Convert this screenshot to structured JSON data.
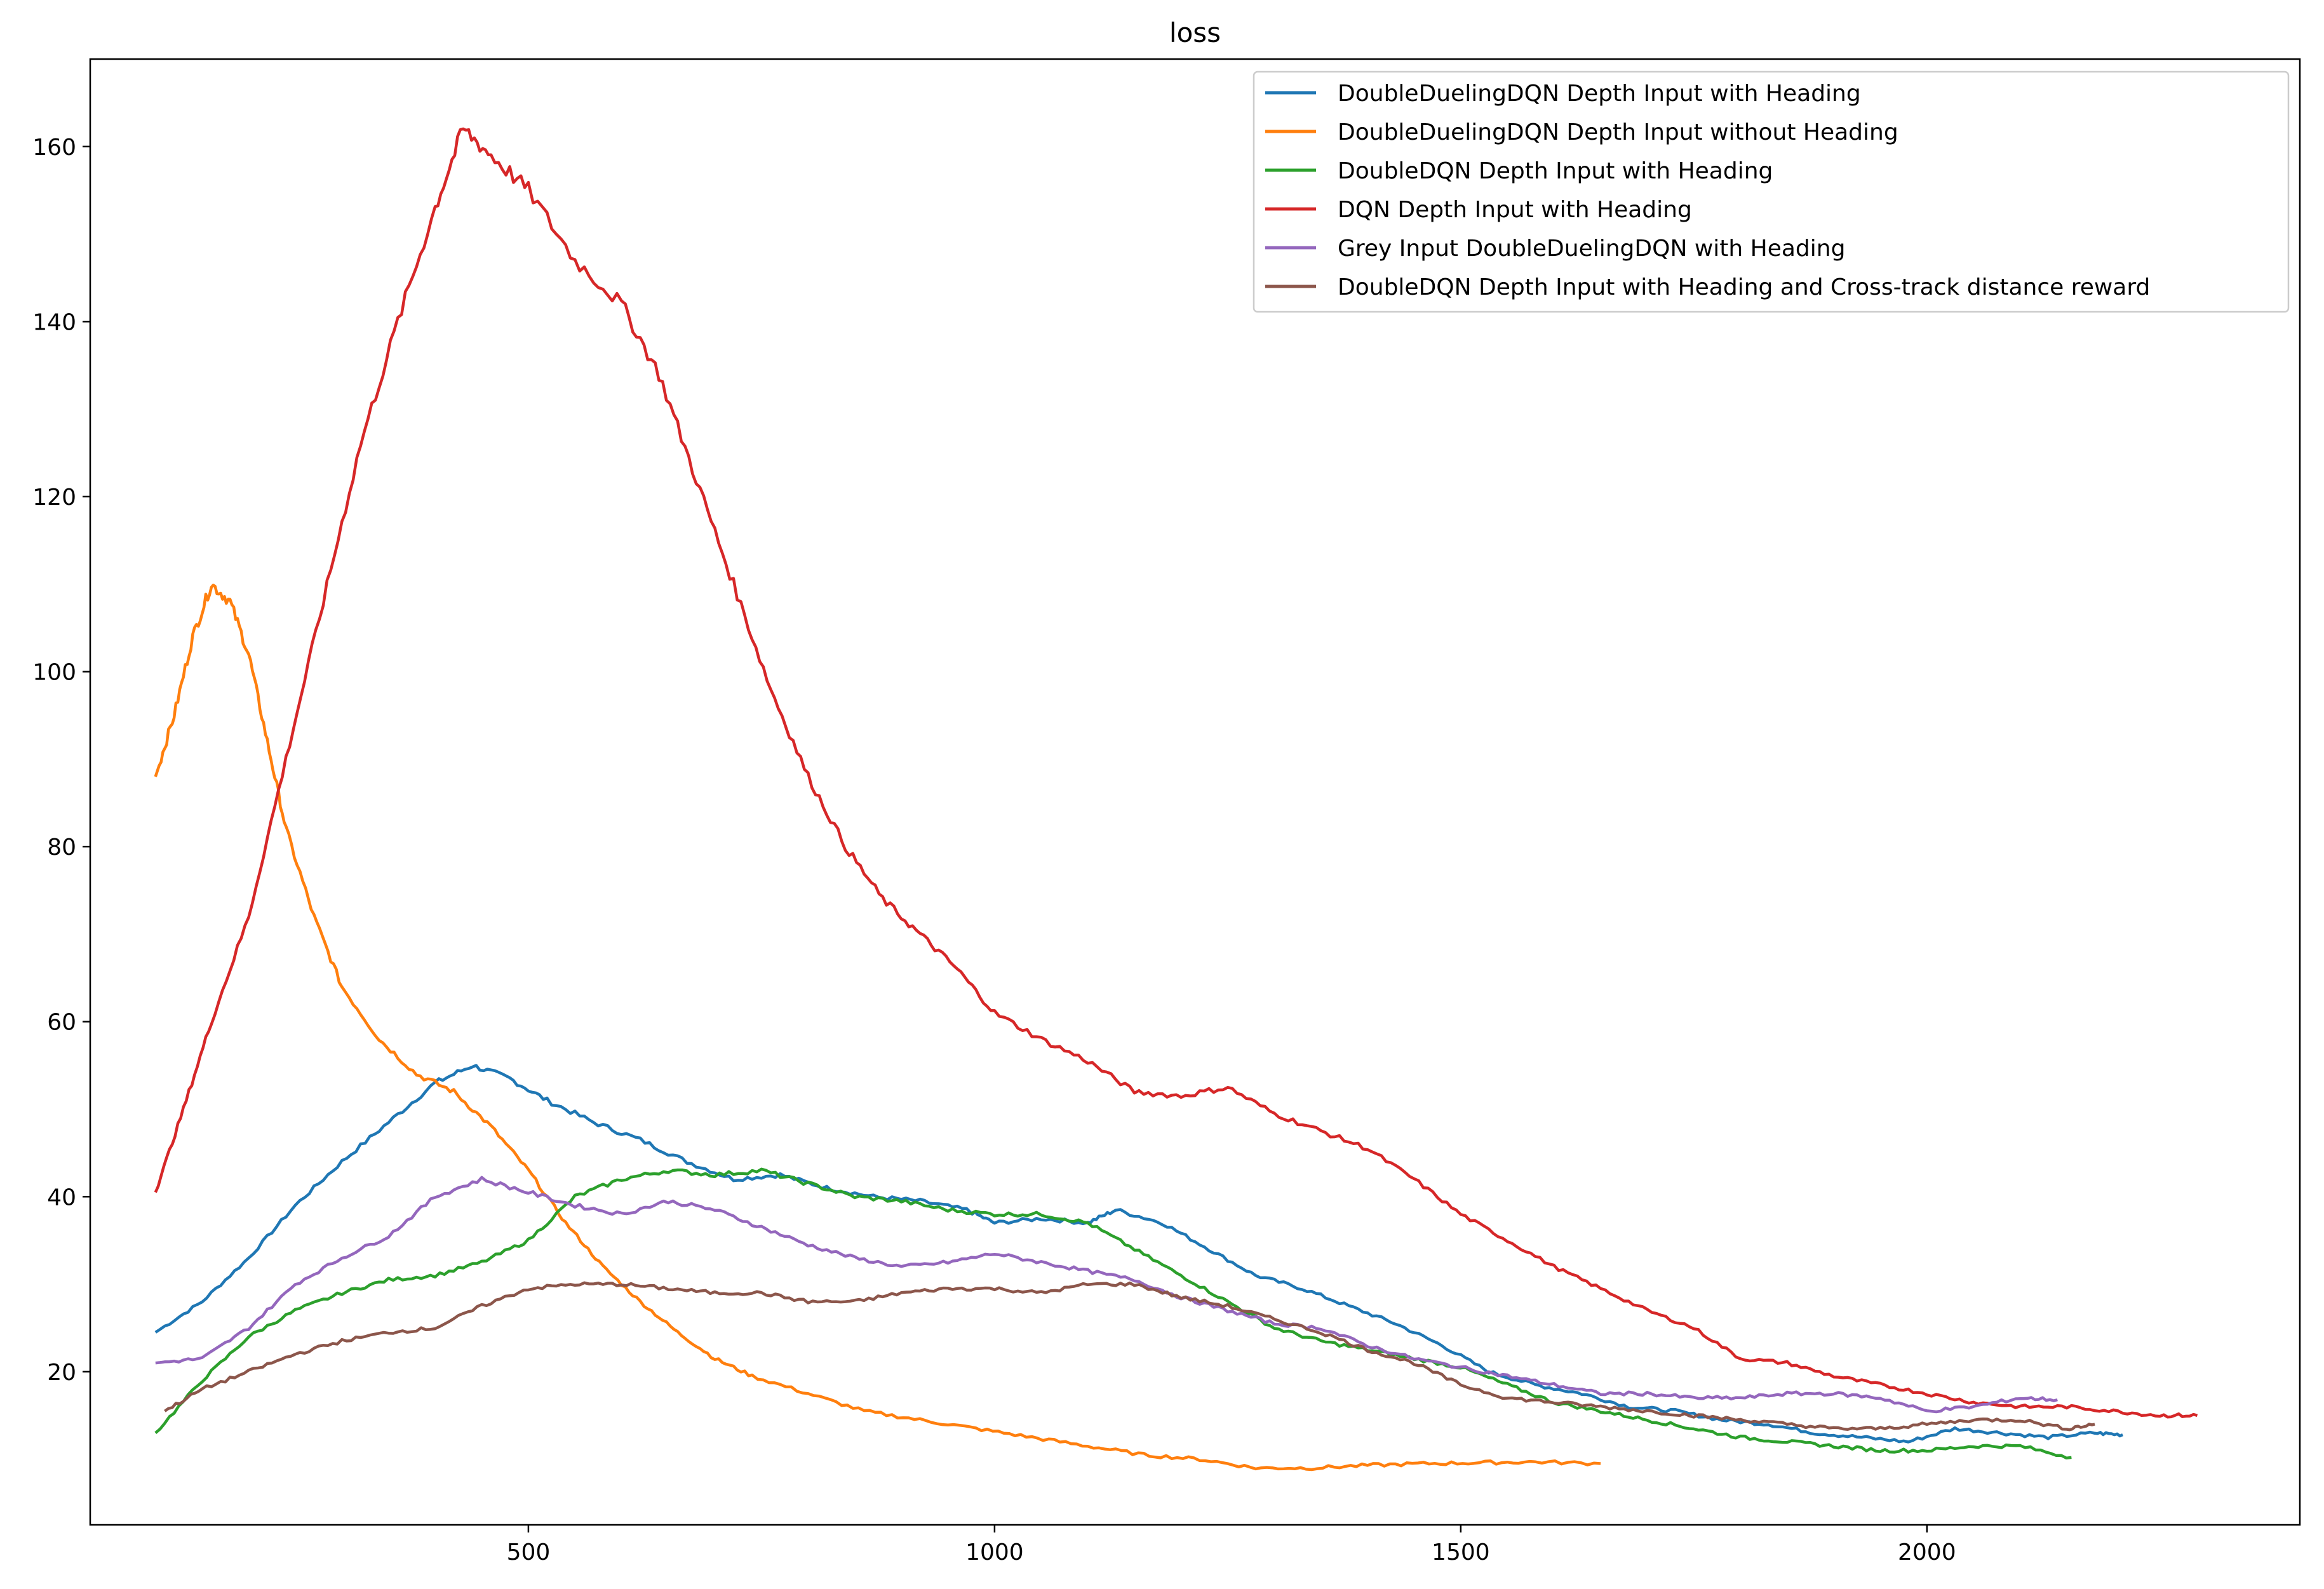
{
  "chart_data": {
    "type": "line",
    "title": "loss",
    "xlabel": "",
    "ylabel": "",
    "xlim": [
      30,
      2400
    ],
    "ylim": [
      2.5,
      170
    ],
    "xticks": [
      500,
      1000,
      1500,
      2000
    ],
    "yticks": [
      20,
      40,
      60,
      80,
      100,
      120,
      140,
      160
    ],
    "grid": false,
    "legend_position": "top-right",
    "series": [
      {
        "name": "DoubleDuelingDQN Depth Input with Heading",
        "color": "#1f77b4",
        "points": [
          [
            100,
            24.5
          ],
          [
            150,
            28
          ],
          [
            200,
            33
          ],
          [
            250,
            39
          ],
          [
            300,
            44
          ],
          [
            350,
            48.5
          ],
          [
            400,
            53
          ],
          [
            440,
            55
          ],
          [
            480,
            53.5
          ],
          [
            520,
            51
          ],
          [
            570,
            48.5
          ],
          [
            620,
            46.5
          ],
          [
            670,
            44
          ],
          [
            720,
            42
          ],
          [
            770,
            42.5
          ],
          [
            820,
            41
          ],
          [
            870,
            40
          ],
          [
            920,
            39.5
          ],
          [
            970,
            38.5
          ],
          [
            1000,
            37
          ],
          [
            1050,
            37.5
          ],
          [
            1100,
            37
          ],
          [
            1130,
            38.5
          ],
          [
            1180,
            37
          ],
          [
            1230,
            34
          ],
          [
            1280,
            31
          ],
          [
            1330,
            29.5
          ],
          [
            1380,
            27.5
          ],
          [
            1430,
            25.5
          ],
          [
            1480,
            23
          ],
          [
            1530,
            20
          ],
          [
            1580,
            18.5
          ],
          [
            1630,
            17.5
          ],
          [
            1680,
            16
          ],
          [
            1730,
            15.5
          ],
          [
            1780,
            14.5
          ],
          [
            1830,
            14
          ],
          [
            1880,
            13
          ],
          [
            1930,
            12.5
          ],
          [
            1980,
            12
          ],
          [
            2030,
            13.5
          ],
          [
            2080,
            13
          ],
          [
            2130,
            12.5
          ],
          [
            2180,
            13
          ],
          [
            2210,
            12.8
          ]
        ]
      },
      {
        "name": "DoubleDuelingDQN Depth Input without Heading",
        "color": "#ff7f0e",
        "points": [
          [
            100,
            88
          ],
          [
            120,
            95
          ],
          [
            140,
            104
          ],
          [
            160,
            110
          ],
          [
            180,
            108
          ],
          [
            200,
            102
          ],
          [
            220,
            92
          ],
          [
            240,
            82
          ],
          [
            270,
            72
          ],
          [
            300,
            64
          ],
          [
            340,
            58
          ],
          [
            380,
            54
          ],
          [
            420,
            52
          ],
          [
            460,
            48
          ],
          [
            500,
            43
          ],
          [
            540,
            37
          ],
          [
            580,
            32
          ],
          [
            620,
            28
          ],
          [
            660,
            24.5
          ],
          [
            700,
            21.5
          ],
          [
            740,
            19.5
          ],
          [
            800,
            17.5
          ],
          [
            860,
            15.5
          ],
          [
            920,
            14.5
          ],
          [
            980,
            13.5
          ],
          [
            1040,
            12.5
          ],
          [
            1100,
            11.5
          ],
          [
            1160,
            10.5
          ],
          [
            1220,
            10
          ],
          [
            1280,
            9
          ],
          [
            1340,
            9
          ],
          [
            1400,
            9.3
          ],
          [
            1460,
            9.5
          ],
          [
            1520,
            9.6
          ],
          [
            1580,
            9.7
          ],
          [
            1650,
            9.5
          ]
        ]
      },
      {
        "name": "DoubleDQN Depth Input with Heading",
        "color": "#2ca02c",
        "points": [
          [
            100,
            13
          ],
          [
            150,
            19
          ],
          [
            200,
            24
          ],
          [
            250,
            27
          ],
          [
            300,
            29
          ],
          [
            350,
            30.5
          ],
          [
            400,
            31
          ],
          [
            450,
            32.5
          ],
          [
            500,
            35
          ],
          [
            550,
            40
          ],
          [
            600,
            42
          ],
          [
            650,
            43
          ],
          [
            700,
            42.5
          ],
          [
            750,
            43
          ],
          [
            800,
            41.5
          ],
          [
            850,
            40
          ],
          [
            900,
            39.5
          ],
          [
            950,
            38.5
          ],
          [
            1000,
            38
          ],
          [
            1050,
            38
          ],
          [
            1100,
            37
          ],
          [
            1150,
            34
          ],
          [
            1200,
            31
          ],
          [
            1250,
            28
          ],
          [
            1300,
            25
          ],
          [
            1350,
            23.5
          ],
          [
            1400,
            22.5
          ],
          [
            1450,
            21.5
          ],
          [
            1500,
            20.5
          ],
          [
            1550,
            18.5
          ],
          [
            1600,
            16.5
          ],
          [
            1650,
            15.5
          ],
          [
            1700,
            14.5
          ],
          [
            1750,
            13.5
          ],
          [
            1800,
            12.5
          ],
          [
            1850,
            12
          ],
          [
            1900,
            11.5
          ],
          [
            1950,
            11
          ],
          [
            2000,
            11
          ],
          [
            2050,
            11.5
          ],
          [
            2100,
            11.5
          ],
          [
            2155,
            10.2
          ]
        ]
      },
      {
        "name": "DQN Depth Input with Heading",
        "color": "#d62728",
        "points": [
          [
            100,
            40.5
          ],
          [
            130,
            50
          ],
          [
            160,
            60
          ],
          [
            200,
            72
          ],
          [
            240,
            90
          ],
          [
            280,
            108
          ],
          [
            320,
            126
          ],
          [
            360,
            140
          ],
          [
            400,
            153
          ],
          [
            430,
            162
          ],
          [
            460,
            159
          ],
          [
            500,
            155
          ],
          [
            550,
            147
          ],
          [
            600,
            142
          ],
          [
            640,
            134
          ],
          [
            680,
            122
          ],
          [
            720,
            110
          ],
          [
            760,
            98
          ],
          [
            800,
            88
          ],
          [
            840,
            80
          ],
          [
            880,
            74
          ],
          [
            920,
            70
          ],
          [
            960,
            66
          ],
          [
            1000,
            61
          ],
          [
            1050,
            58
          ],
          [
            1100,
            55.5
          ],
          [
            1150,
            52
          ],
          [
            1200,
            51.5
          ],
          [
            1250,
            52.5
          ],
          [
            1300,
            49.5
          ],
          [
            1350,
            47.5
          ],
          [
            1400,
            45.5
          ],
          [
            1450,
            42
          ],
          [
            1500,
            38
          ],
          [
            1550,
            35
          ],
          [
            1600,
            32
          ],
          [
            1650,
            29.5
          ],
          [
            1700,
            27
          ],
          [
            1750,
            25
          ],
          [
            1800,
            21.5
          ],
          [
            1850,
            21
          ],
          [
            1900,
            19.5
          ],
          [
            1950,
            18.5
          ],
          [
            2000,
            17.5
          ],
          [
            2050,
            16.5
          ],
          [
            2100,
            16
          ],
          [
            2150,
            16
          ],
          [
            2200,
            15.5
          ],
          [
            2250,
            15
          ],
          [
            2290,
            15
          ]
        ]
      },
      {
        "name": "Grey Input DoubleDuelingDQN with Heading",
        "color": "#9467bd",
        "points": [
          [
            100,
            21
          ],
          [
            150,
            21.5
          ],
          [
            200,
            25
          ],
          [
            250,
            30
          ],
          [
            300,
            33
          ],
          [
            350,
            35.5
          ],
          [
            400,
            40
          ],
          [
            450,
            42
          ],
          [
            500,
            40.5
          ],
          [
            550,
            39
          ],
          [
            600,
            38
          ],
          [
            650,
            39.5
          ],
          [
            700,
            38.5
          ],
          [
            750,
            36.5
          ],
          [
            800,
            34.5
          ],
          [
            850,
            33
          ],
          [
            900,
            32
          ],
          [
            950,
            32.5
          ],
          [
            1000,
            33.5
          ],
          [
            1050,
            32.5
          ],
          [
            1100,
            31.5
          ],
          [
            1150,
            30.5
          ],
          [
            1200,
            28.5
          ],
          [
            1250,
            27
          ],
          [
            1300,
            25.5
          ],
          [
            1350,
            25
          ],
          [
            1400,
            23
          ],
          [
            1450,
            21.5
          ],
          [
            1500,
            20.5
          ],
          [
            1550,
            19.5
          ],
          [
            1600,
            18.5
          ],
          [
            1650,
            17.5
          ],
          [
            1700,
            17.5
          ],
          [
            1750,
            17
          ],
          [
            1800,
            17
          ],
          [
            1850,
            17.5
          ],
          [
            1900,
            17.5
          ],
          [
            1950,
            17
          ],
          [
            2000,
            15.5
          ],
          [
            2050,
            16
          ],
          [
            2100,
            17
          ],
          [
            2140,
            16.8
          ]
        ]
      },
      {
        "name": "DoubleDQN Depth Input with Heading and Cross-track distance reward",
        "color": "#8c564b",
        "points": [
          [
            110,
            15.5
          ],
          [
            150,
            18
          ],
          [
            200,
            20
          ],
          [
            250,
            22
          ],
          [
            300,
            23.5
          ],
          [
            350,
            24.5
          ],
          [
            400,
            25
          ],
          [
            450,
            27.5
          ],
          [
            500,
            29.5
          ],
          [
            550,
            30
          ],
          [
            600,
            30
          ],
          [
            650,
            29.5
          ],
          [
            700,
            29
          ],
          [
            750,
            29
          ],
          [
            800,
            28
          ],
          [
            850,
            28
          ],
          [
            900,
            29
          ],
          [
            950,
            29.5
          ],
          [
            1000,
            29.5
          ],
          [
            1050,
            29
          ],
          [
            1100,
            30
          ],
          [
            1150,
            30
          ],
          [
            1200,
            28.5
          ],
          [
            1250,
            27.5
          ],
          [
            1300,
            26
          ],
          [
            1350,
            24.5
          ],
          [
            1400,
            22.5
          ],
          [
            1450,
            21
          ],
          [
            1500,
            18.5
          ],
          [
            1550,
            17
          ],
          [
            1600,
            16.5
          ],
          [
            1650,
            16
          ],
          [
            1700,
            15.5
          ],
          [
            1750,
            15
          ],
          [
            1800,
            14.5
          ],
          [
            1850,
            14
          ],
          [
            1900,
            13.5
          ],
          [
            1950,
            13.5
          ],
          [
            2000,
            14
          ],
          [
            2050,
            14.5
          ],
          [
            2100,
            14.5
          ],
          [
            2150,
            13.5
          ],
          [
            2180,
            14
          ]
        ]
      }
    ]
  }
}
